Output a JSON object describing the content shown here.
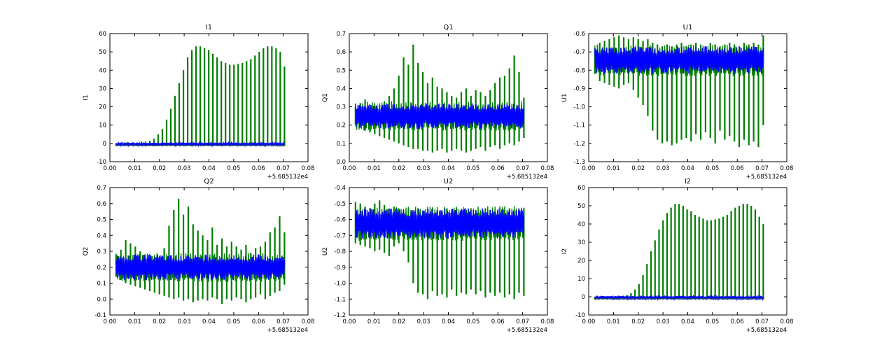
{
  "colors": {
    "green": "#007f00",
    "blue": "#0000ff",
    "axis": "#000000"
  },
  "offset_label": "+5.685132e4",
  "chart_data": [
    {
      "type": "line",
      "title": "I1",
      "xlabel": "",
      "ylabel": "I1",
      "xlim": [
        0.0,
        0.08
      ],
      "ylim": [
        -10,
        60
      ],
      "xticks": [
        "0.00",
        "0.01",
        "0.02",
        "0.03",
        "0.04",
        "0.05",
        "0.06",
        "0.07",
        "0.08"
      ],
      "yticks": [
        "-10",
        "0",
        "10",
        "20",
        "30",
        "40",
        "50",
        "60"
      ],
      "x_range": [
        0.0025,
        0.0705
      ],
      "baseline": -1,
      "series": [
        {
          "name": "green",
          "color": "#007f00",
          "kind": "spikes",
          "min": -1.5,
          "tops": [
            0,
            0,
            0.5,
            0.5,
            0.5,
            0.5,
            1,
            1,
            1.5,
            2.5,
            5,
            8,
            13,
            19,
            26,
            33,
            40,
            47,
            51,
            53,
            53,
            52,
            51,
            49,
            47,
            45,
            44,
            43,
            43,
            43.5,
            44,
            45,
            46,
            48,
            50,
            52,
            53,
            53,
            52,
            50,
            42
          ]
        },
        {
          "name": "blue",
          "color": "#0000ff",
          "kind": "band",
          "low": -1.5,
          "high": 0.5
        }
      ]
    },
    {
      "type": "line",
      "title": "Q1",
      "xlabel": "",
      "ylabel": "Q1",
      "xlim": [
        0.0,
        0.08
      ],
      "ylim": [
        0.0,
        0.7
      ],
      "xticks": [
        "0.00",
        "0.01",
        "0.02",
        "0.03",
        "0.04",
        "0.05",
        "0.06",
        "0.07",
        "0.08"
      ],
      "yticks": [
        "0.0",
        "0.1",
        "0.2",
        "0.3",
        "0.4",
        "0.5",
        "0.6",
        "0.7"
      ],
      "x_range": [
        0.0025,
        0.0705
      ],
      "series": [
        {
          "name": "green",
          "color": "#007f00",
          "kind": "spikes",
          "tops": [
            0.3,
            0.32,
            0.34,
            0.3,
            0.3,
            0.31,
            0.33,
            0.36,
            0.4,
            0.47,
            0.57,
            0.53,
            0.64,
            0.54,
            0.49,
            0.43,
            0.46,
            0.41,
            0.4,
            0.38,
            0.36,
            0.35,
            0.38,
            0.4,
            0.36,
            0.39,
            0.38,
            0.36,
            0.39,
            0.43,
            0.46,
            0.47,
            0.51,
            0.58,
            0.49,
            0.35
          ],
          "bottoms": [
            0.2,
            0.19,
            0.17,
            0.16,
            0.15,
            0.14,
            0.13,
            0.12,
            0.11,
            0.1,
            0.09,
            0.08,
            0.07,
            0.07,
            0.06,
            0.06,
            0.05,
            0.06,
            0.07,
            0.05,
            0.06,
            0.07,
            0.06,
            0.05,
            0.06,
            0.07,
            0.08,
            0.06,
            0.08,
            0.09,
            0.07,
            0.09,
            0.1,
            0.09,
            0.11,
            0.13
          ]
        },
        {
          "name": "blue",
          "color": "#0000ff",
          "kind": "band",
          "low": 0.18,
          "high": 0.32
        }
      ]
    },
    {
      "type": "line",
      "title": "U1",
      "xlabel": "",
      "ylabel": "U1",
      "xlim": [
        0.0,
        0.08
      ],
      "ylim": [
        -1.3,
        -0.6
      ],
      "xticks": [
        "0.00",
        "0.01",
        "0.02",
        "0.03",
        "0.04",
        "0.05",
        "0.06",
        "0.07",
        "0.08"
      ],
      "yticks": [
        "-1.3",
        "-1.2",
        "-1.1",
        "-1.0",
        "-0.9",
        "-0.8",
        "-0.7",
        "-0.6"
      ],
      "x_range": [
        0.0025,
        0.0705
      ],
      "series": [
        {
          "name": "green",
          "color": "#007f00",
          "kind": "spikes",
          "tops": [
            -0.68,
            -0.65,
            -0.64,
            -0.63,
            -0.62,
            -0.61,
            -0.62,
            -0.63,
            -0.62,
            -0.63,
            -0.64,
            -0.63,
            -0.65,
            -0.66,
            -0.67,
            -0.66,
            -0.67,
            -0.66,
            -0.65,
            -0.67,
            -0.66,
            -0.65,
            -0.66,
            -0.67,
            -0.65,
            -0.66,
            -0.67,
            -0.66,
            -0.65,
            -0.66,
            -0.67,
            -0.65,
            -0.66,
            -0.65,
            -0.66,
            -0.61
          ],
          "bottoms": [
            -0.82,
            -0.86,
            -0.87,
            -0.88,
            -0.89,
            -0.9,
            -0.88,
            -0.87,
            -0.91,
            -0.95,
            -0.99,
            -1.05,
            -1.13,
            -1.18,
            -1.2,
            -1.19,
            -1.21,
            -1.2,
            -1.18,
            -1.17,
            -1.19,
            -1.15,
            -1.18,
            -1.14,
            -1.17,
            -1.2,
            -1.13,
            -1.18,
            -1.16,
            -1.19,
            -1.22,
            -1.18,
            -1.21,
            -1.19,
            -1.22,
            -1.1
          ]
        },
        {
          "name": "blue",
          "color": "#0000ff",
          "kind": "band",
          "low": -0.82,
          "high": -0.67
        }
      ]
    },
    {
      "type": "line",
      "title": "Q2",
      "xlabel": "",
      "ylabel": "Q2",
      "xlim": [
        0.0,
        0.08
      ],
      "ylim": [
        -0.1,
        0.7
      ],
      "xticks": [
        "0.00",
        "0.01",
        "0.02",
        "0.03",
        "0.04",
        "0.05",
        "0.06",
        "0.07",
        "0.08"
      ],
      "yticks": [
        "-0.1",
        "0.0",
        "0.1",
        "0.2",
        "0.3",
        "0.4",
        "0.5",
        "0.6",
        "0.7"
      ],
      "x_range": [
        0.0025,
        0.0705
      ],
      "series": [
        {
          "name": "green",
          "color": "#007f00",
          "kind": "spikes",
          "tops": [
            0.28,
            0.31,
            0.37,
            0.35,
            0.33,
            0.3,
            0.28,
            0.26,
            0.23,
            0.25,
            0.32,
            0.46,
            0.56,
            0.63,
            0.53,
            0.58,
            0.47,
            0.43,
            0.4,
            0.37,
            0.45,
            0.34,
            0.38,
            0.33,
            0.36,
            0.33,
            0.31,
            0.34,
            0.29,
            0.32,
            0.33,
            0.36,
            0.42,
            0.45,
            0.52,
            0.42
          ],
          "bottoms": [
            0.14,
            0.12,
            0.1,
            0.09,
            0.08,
            0.07,
            0.06,
            0.05,
            0.04,
            0.03,
            0.02,
            0.01,
            0.0,
            0.01,
            -0.01,
            0.0,
            -0.02,
            -0.01,
            0.0,
            -0.01,
            0.01,
            0.0,
            -0.03,
            0.0,
            -0.01,
            0.01,
            0.0,
            -0.02,
            0.0,
            0.01,
            0.03,
            0.0,
            0.02,
            0.04,
            0.05,
            0.09
          ]
        },
        {
          "name": "blue",
          "color": "#0000ff",
          "kind": "band",
          "low": 0.12,
          "high": 0.28
        }
      ]
    },
    {
      "type": "line",
      "title": "U2",
      "xlabel": "",
      "ylabel": "U2",
      "xlim": [
        0.0,
        0.08
      ],
      "ylim": [
        -1.2,
        -0.4
      ],
      "xticks": [
        "0.00",
        "0.01",
        "0.02",
        "0.03",
        "0.04",
        "0.05",
        "0.06",
        "0.07",
        "0.08"
      ],
      "yticks": [
        "-1.2",
        "-1.1",
        "-1.0",
        "-0.9",
        "-0.8",
        "-0.7",
        "-0.6",
        "-0.5",
        "-0.4"
      ],
      "x_range": [
        0.0025,
        0.0705
      ],
      "series": [
        {
          "name": "green",
          "color": "#007f00",
          "kind": "spikes",
          "tops": [
            -0.49,
            -0.5,
            -0.52,
            -0.53,
            -0.5,
            -0.48,
            -0.51,
            -0.53,
            -0.52,
            -0.54,
            -0.55,
            -0.53,
            -0.54,
            -0.53,
            -0.55,
            -0.54,
            -0.53,
            -0.54,
            -0.55,
            -0.53,
            -0.54,
            -0.53,
            -0.55,
            -0.54,
            -0.53,
            -0.54,
            -0.55,
            -0.53,
            -0.54,
            -0.55,
            -0.53,
            -0.54,
            -0.53,
            -0.55,
            -0.54,
            -0.53
          ],
          "bottoms": [
            -0.75,
            -0.76,
            -0.77,
            -0.78,
            -0.8,
            -0.79,
            -0.81,
            -0.83,
            -0.77,
            -0.75,
            -0.8,
            -0.87,
            -1.0,
            -1.06,
            -1.07,
            -1.1,
            -1.05,
            -1.08,
            -1.07,
            -1.09,
            -1.04,
            -1.08,
            -1.06,
            -1.07,
            -1.04,
            -1.07,
            -1.05,
            -1.09,
            -1.06,
            -1.08,
            -1.06,
            -1.09,
            -1.07,
            -1.1,
            -1.06,
            -1.08
          ]
        },
        {
          "name": "blue",
          "color": "#0000ff",
          "kind": "band",
          "low": -0.72,
          "high": -0.53
        }
      ]
    },
    {
      "type": "line",
      "title": "I2",
      "xlabel": "",
      "ylabel": "I2",
      "xlim": [
        0.0,
        0.08
      ],
      "ylim": [
        -10,
        60
      ],
      "xticks": [
        "0.00",
        "0.01",
        "0.02",
        "0.03",
        "0.04",
        "0.05",
        "0.06",
        "0.07",
        "0.08"
      ],
      "yticks": [
        "-10",
        "0",
        "10",
        "20",
        "30",
        "40",
        "50",
        "60"
      ],
      "x_range": [
        0.0025,
        0.0705
      ],
      "baseline": -1,
      "series": [
        {
          "name": "green",
          "color": "#007f00",
          "kind": "spikes",
          "min": -1.5,
          "tops": [
            0,
            0,
            0,
            0,
            0,
            0,
            0.5,
            0.5,
            1,
            2,
            4,
            7,
            12,
            18,
            25,
            31,
            37,
            42,
            46,
            49,
            51,
            51,
            50,
            48,
            47,
            45,
            44,
            43,
            42,
            42,
            42.5,
            43,
            44,
            45,
            47,
            49,
            50,
            51,
            51,
            50,
            48,
            44,
            40
          ]
        },
        {
          "name": "blue",
          "color": "#0000ff",
          "kind": "band",
          "low": -1.5,
          "high": 0.5
        }
      ]
    }
  ]
}
